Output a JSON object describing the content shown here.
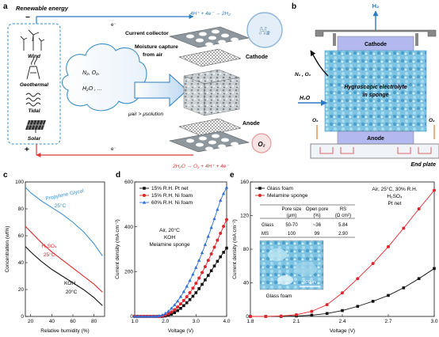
{
  "panel_a": {
    "label": "a",
    "renewable_energy": "Renewable energy",
    "sources": [
      "Wind",
      "Geothermal",
      "Tidal",
      "Solar"
    ],
    "minus": "−",
    "plus": "+",
    "electron": "e⁻",
    "current_collector": "Current collector",
    "cathode": "Cathode",
    "anode": "Anode",
    "moisture_line1": "Moisture capture",
    "moisture_line2": "from air",
    "gases_line1": "N₂, O₂,",
    "gases_line2": "H₂O , ...",
    "mu_relation": "μair > μsolution",
    "cathode_reaction": "4H⁺ + 4e⁻ → 2H₂",
    "anode_reaction": "2H₂O → O₂ + 4H⁺ + 4e⁻",
    "h2_bubble": "H₂",
    "o2_bubble": "O₂"
  },
  "panel_b": {
    "label": "b",
    "h2_label": "H₂",
    "cathode": "Cathode",
    "anode": "Anode",
    "n2o2": "N₂ , O₂",
    "h2o": "H₂O",
    "electrolyte_line1": "Hygroscopic electrolyte",
    "electrolyte_line2": "in sponge",
    "o2_label": "O₂",
    "end_plate": "End plate"
  },
  "panel_c": {
    "label": "c",
    "annotations": [
      "Propylene Glycol",
      "25°C",
      "H₂SO₄",
      "25°C",
      "KOH",
      "20°C"
    ]
  },
  "panel_d": {
    "label": "d",
    "annotations": [
      "Air, 20°C",
      "KOH",
      "Melamine sponge"
    ]
  },
  "panel_e": {
    "label": "e",
    "annotations": [
      "Air, 25°C, 30% R.H.",
      "H₂SO₄",
      "Pt net"
    ],
    "table": {
      "headers": [
        "",
        "Pore size\n(μm)",
        "Open pore\n(%)",
        "RS\n(Ω cm²)"
      ],
      "rows": [
        [
          "Glass",
          "50-70",
          "~36",
          "5.84"
        ],
        [
          "MS",
          "100",
          "99",
          "2.90"
        ]
      ]
    },
    "inset_scale": "500μm",
    "inset_caption": "Glass foam"
  },
  "chart_data": [
    {
      "panel": "c",
      "type": "line",
      "xlabel": "Relative humidity (%)",
      "ylabel": "Concentration (wt%)",
      "xlim": [
        15,
        90
      ],
      "ylim": [
        0,
        100
      ],
      "xticks": [
        20,
        40,
        60,
        80
      ],
      "yticks": [
        0,
        20,
        40,
        60,
        80,
        100
      ],
      "series": [
        {
          "name": "Propylene Glycol",
          "color": "#3b8fd0",
          "x": [
            15,
            20,
            30,
            40,
            50,
            60,
            70,
            80,
            88
          ],
          "y": [
            96,
            92,
            86,
            81,
            76,
            70,
            63,
            54,
            45
          ]
        },
        {
          "name": "H₂SO₄",
          "color": "#e0262a",
          "x": [
            15,
            20,
            30,
            40,
            50,
            60,
            70,
            80,
            88
          ],
          "y": [
            67,
            63,
            55,
            48,
            42,
            36,
            30,
            24,
            18
          ]
        },
        {
          "name": "KOH",
          "color": "#111111",
          "x": [
            15,
            20,
            30,
            40,
            50,
            60,
            70,
            80,
            88
          ],
          "y": [
            52,
            48,
            41,
            35,
            30,
            25,
            20,
            14,
            8
          ]
        }
      ]
    },
    {
      "panel": "d",
      "type": "line",
      "xlabel": "Voltage (V)",
      "ylabel": "Current density (mA cm⁻²)",
      "xlim": [
        1.0,
        4.0
      ],
      "ylim": [
        0,
        600
      ],
      "xticks": [
        1.0,
        2.0,
        3.0,
        4.0
      ],
      "yticks": [
        0,
        200,
        400,
        600
      ],
      "legend": "top-left",
      "series": [
        {
          "name": "15% R.H. Pt net",
          "color": "#111111",
          "marker": "square",
          "x": [
            1.0,
            1.1,
            1.2,
            1.3,
            1.4,
            1.5,
            1.6,
            1.7,
            1.8,
            1.9,
            2.0,
            2.1,
            2.2,
            2.3,
            2.4,
            2.5,
            2.6,
            2.7,
            2.8,
            2.9,
            3.0,
            3.1,
            3.2,
            3.3,
            3.4,
            3.5,
            3.6,
            3.7,
            3.8,
            3.9,
            4.0
          ],
          "y": [
            0,
            0,
            0,
            0,
            0,
            0,
            0,
            0,
            0,
            0,
            2,
            5,
            10,
            17,
            26,
            36,
            48,
            61,
            75,
            90,
            106,
            124,
            143,
            163,
            183,
            204,
            225,
            246,
            266,
            286,
            305
          ]
        },
        {
          "name": "15% R.H. Ni foam",
          "color": "#e0262a",
          "marker": "circle",
          "x": [
            1.0,
            1.1,
            1.2,
            1.3,
            1.4,
            1.5,
            1.6,
            1.7,
            1.8,
            1.9,
            2.0,
            2.1,
            2.2,
            2.3,
            2.4,
            2.5,
            2.6,
            2.7,
            2.8,
            2.9,
            3.0,
            3.1,
            3.2,
            3.3,
            3.4,
            3.5,
            3.6,
            3.7,
            3.8,
            3.9,
            4.0
          ],
          "y": [
            0,
            0,
            0,
            0,
            0,
            0,
            0,
            0,
            0,
            2,
            6,
            12,
            20,
            30,
            42,
            56,
            71,
            88,
            106,
            126,
            148,
            171,
            196,
            222,
            250,
            279,
            309,
            340,
            371,
            402,
            432
          ]
        },
        {
          "name": "60% R.H. Ni foam",
          "color": "#2f6fd8",
          "marker": "triangle",
          "x": [
            1.0,
            1.1,
            1.2,
            1.3,
            1.4,
            1.5,
            1.6,
            1.7,
            1.8,
            1.9,
            2.0,
            2.1,
            2.2,
            2.3,
            2.4,
            2.5,
            2.6,
            2.7,
            2.8,
            2.9,
            3.0,
            3.1,
            3.2,
            3.3,
            3.4,
            3.5,
            3.6,
            3.7,
            3.8,
            3.9,
            4.0
          ],
          "y": [
            0,
            0,
            0,
            0,
            0,
            0,
            0,
            0,
            2,
            6,
            13,
            23,
            36,
            51,
            68,
            88,
            110,
            134,
            160,
            188,
            218,
            250,
            284,
            320,
            357,
            396,
            436,
            477,
            518,
            548,
            575
          ]
        }
      ]
    },
    {
      "panel": "e",
      "type": "line",
      "xlabel": "Voltage (V)",
      "ylabel": "Current density (mA cm⁻²)",
      "xlim": [
        1.8,
        3.0
      ],
      "ylim": [
        0,
        160
      ],
      "xticks": [
        1.8,
        2.1,
        2.4,
        2.7,
        3.0
      ],
      "yticks": [
        0,
        40,
        80,
        120,
        160
      ],
      "legend": "top-left",
      "series": [
        {
          "name": "Glass foam",
          "color": "#111111",
          "marker": "square",
          "x": [
            1.8,
            1.9,
            2.0,
            2.1,
            2.2,
            2.3,
            2.4,
            2.5,
            2.6,
            2.7,
            2.8,
            2.9,
            3.0
          ],
          "y": [
            0,
            0,
            0,
            0.5,
            1.5,
            3.5,
            7,
            12,
            18,
            25,
            34,
            45,
            57
          ]
        },
        {
          "name": "Melamine sponge",
          "color": "#e0262a",
          "marker": "circle",
          "x": [
            1.8,
            1.9,
            2.0,
            2.1,
            2.2,
            2.3,
            2.4,
            2.5,
            2.6,
            2.7,
            2.8,
            2.9,
            3.0
          ],
          "y": [
            0,
            0,
            0.5,
            2,
            6,
            14,
            28,
            45,
            63,
            83,
            105,
            128,
            150
          ]
        }
      ]
    }
  ]
}
